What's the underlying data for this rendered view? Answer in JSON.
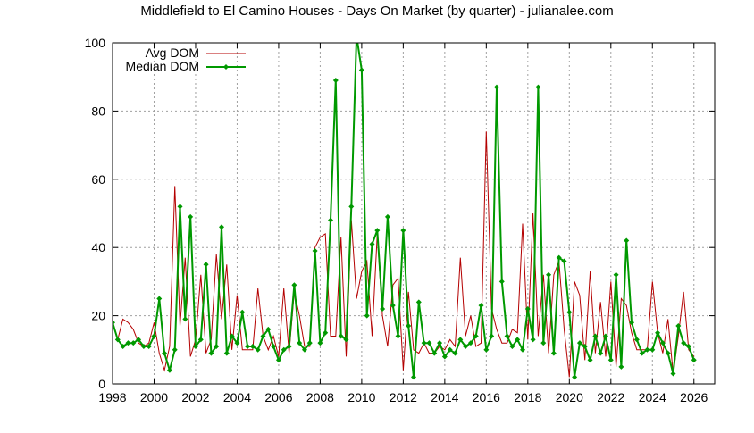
{
  "chart_data": {
    "type": "line",
    "title": "Middlefield to El Camino Houses - Days On Market (by quarter) - julianalee.com",
    "xlabel": "",
    "ylabel": "",
    "xlim": [
      1998,
      2027
    ],
    "ylim": [
      0,
      100
    ],
    "x_ticks": [
      "1998",
      "2000",
      "2002",
      "2004",
      "2006",
      "2008",
      "2010",
      "2012",
      "2014",
      "2016",
      "2018",
      "2020",
      "2022",
      "2024",
      "2026"
    ],
    "y_ticks": [
      "0",
      "20",
      "40",
      "60",
      "80",
      "100"
    ],
    "grid": true,
    "legend_position": "top-left",
    "colors": {
      "avg": "#b40000",
      "median": "#009900"
    },
    "series": [
      {
        "name": "Avg DOM",
        "style": "line",
        "x": [
          1998.0,
          1998.25,
          1998.5,
          1998.75,
          1999.0,
          1999.25,
          1999.5,
          1999.75,
          2000.0,
          2000.25,
          2000.5,
          2000.75,
          2001.0,
          2001.25,
          2001.5,
          2001.75,
          2002.0,
          2002.25,
          2002.5,
          2002.75,
          2003.0,
          2003.25,
          2003.5,
          2003.75,
          2004.0,
          2004.25,
          2004.5,
          2004.75,
          2005.0,
          2005.25,
          2005.5,
          2005.75,
          2006.0,
          2006.25,
          2006.5,
          2006.75,
          2007.0,
          2007.25,
          2007.5,
          2007.75,
          2008.0,
          2008.25,
          2008.5,
          2008.75,
          2009.0,
          2009.25,
          2009.5,
          2009.75,
          2010.0,
          2010.25,
          2010.5,
          2010.75,
          2011.0,
          2011.25,
          2011.5,
          2011.75,
          2012.0,
          2012.25,
          2012.5,
          2012.75,
          2013.0,
          2013.25,
          2013.5,
          2013.75,
          2014.0,
          2014.25,
          2014.5,
          2014.75,
          2015.0,
          2015.25,
          2015.5,
          2015.75,
          2016.0,
          2016.25,
          2016.5,
          2016.75,
          2017.0,
          2017.25,
          2017.5,
          2017.75,
          2018.0,
          2018.25,
          2018.5,
          2018.75,
          2019.0,
          2019.25,
          2019.5,
          2019.75,
          2020.0,
          2020.25,
          2020.5,
          2020.75,
          2021.0,
          2021.25,
          2021.5,
          2021.75,
          2022.0,
          2022.25,
          2022.5,
          2022.75,
          2023.0,
          2023.25,
          2023.5,
          2023.75,
          2024.0,
          2024.25,
          2024.5,
          2024.75,
          2025.0,
          2025.25,
          2025.5,
          2025.75,
          2026.0
        ],
        "values": [
          18,
          13,
          19,
          18,
          16,
          12,
          11,
          12,
          18,
          9,
          4,
          11,
          58,
          17,
          37,
          8,
          13,
          32,
          9,
          13,
          38,
          19,
          35,
          10,
          26,
          10,
          10,
          10,
          28,
          14,
          10,
          14,
          8,
          28,
          9,
          27,
          20,
          11,
          11,
          40,
          43,
          44,
          14,
          14,
          43,
          8,
          48,
          25,
          33,
          36,
          14,
          44,
          20,
          11,
          29,
          31,
          4,
          27,
          10,
          9,
          12,
          9,
          9,
          11,
          10,
          13,
          11,
          37,
          14,
          20,
          11,
          12,
          74,
          22,
          16,
          12,
          12,
          16,
          15,
          47,
          13,
          50,
          14,
          32,
          9,
          32,
          36,
          16,
          2,
          30,
          26,
          7,
          33,
          9,
          24,
          8,
          30,
          5,
          25,
          23,
          15,
          10,
          10,
          10,
          30,
          15,
          9,
          19,
          3,
          14,
          27,
          10,
          8
        ]
      },
      {
        "name": "Median DOM",
        "style": "linespoints",
        "x": [
          1998.0,
          1998.25,
          1998.5,
          1998.75,
          1999.0,
          1999.25,
          1999.5,
          1999.75,
          2000.0,
          2000.25,
          2000.5,
          2000.75,
          2001.0,
          2001.25,
          2001.5,
          2001.75,
          2002.0,
          2002.25,
          2002.5,
          2002.75,
          2003.0,
          2003.25,
          2003.5,
          2003.75,
          2004.0,
          2004.25,
          2004.5,
          2004.75,
          2005.0,
          2005.25,
          2005.5,
          2005.75,
          2006.0,
          2006.25,
          2006.5,
          2006.75,
          2007.0,
          2007.25,
          2007.5,
          2007.75,
          2008.0,
          2008.25,
          2008.5,
          2008.75,
          2009.0,
          2009.25,
          2009.5,
          2009.75,
          2010.0,
          2010.25,
          2010.5,
          2010.75,
          2011.0,
          2011.25,
          2011.5,
          2011.75,
          2012.0,
          2012.25,
          2012.5,
          2012.75,
          2013.0,
          2013.25,
          2013.5,
          2013.75,
          2014.0,
          2014.25,
          2014.5,
          2014.75,
          2015.0,
          2015.25,
          2015.5,
          2015.75,
          2016.0,
          2016.25,
          2016.5,
          2016.75,
          2017.0,
          2017.25,
          2017.5,
          2017.75,
          2018.0,
          2018.25,
          2018.5,
          2018.75,
          2019.0,
          2019.25,
          2019.5,
          2019.75,
          2020.0,
          2020.25,
          2020.5,
          2020.75,
          2021.0,
          2021.25,
          2021.5,
          2021.75,
          2022.0,
          2022.25,
          2022.5,
          2022.75,
          2023.0,
          2023.25,
          2023.5,
          2023.75,
          2024.0,
          2024.25,
          2024.5,
          2024.75,
          2025.0,
          2025.25,
          2025.5,
          2025.75,
          2026.0
        ],
        "values": [
          18,
          13,
          11,
          12,
          12,
          13,
          11,
          11,
          14,
          25,
          9,
          4,
          10,
          52,
          19,
          49,
          11,
          13,
          35,
          9,
          11,
          46,
          9,
          14,
          12,
          21,
          11,
          11,
          10,
          14,
          16,
          11,
          7,
          10,
          11,
          29,
          12,
          10,
          12,
          39,
          12,
          15,
          48,
          89,
          14,
          13,
          52,
          102,
          92,
          20,
          41,
          45,
          22,
          49,
          23,
          14,
          45,
          17,
          2,
          24,
          12,
          12,
          9,
          12,
          8,
          10,
          9,
          13,
          11,
          12,
          14,
          23,
          10,
          14,
          87,
          30,
          14,
          11,
          13,
          10,
          22,
          13,
          87,
          12,
          32,
          9,
          37,
          36,
          21,
          2,
          12,
          11,
          7,
          14,
          9,
          14,
          7,
          32,
          5,
          42,
          18,
          13,
          9,
          10,
          10,
          15,
          12,
          9,
          3,
          17,
          12,
          11,
          7
        ]
      }
    ]
  }
}
